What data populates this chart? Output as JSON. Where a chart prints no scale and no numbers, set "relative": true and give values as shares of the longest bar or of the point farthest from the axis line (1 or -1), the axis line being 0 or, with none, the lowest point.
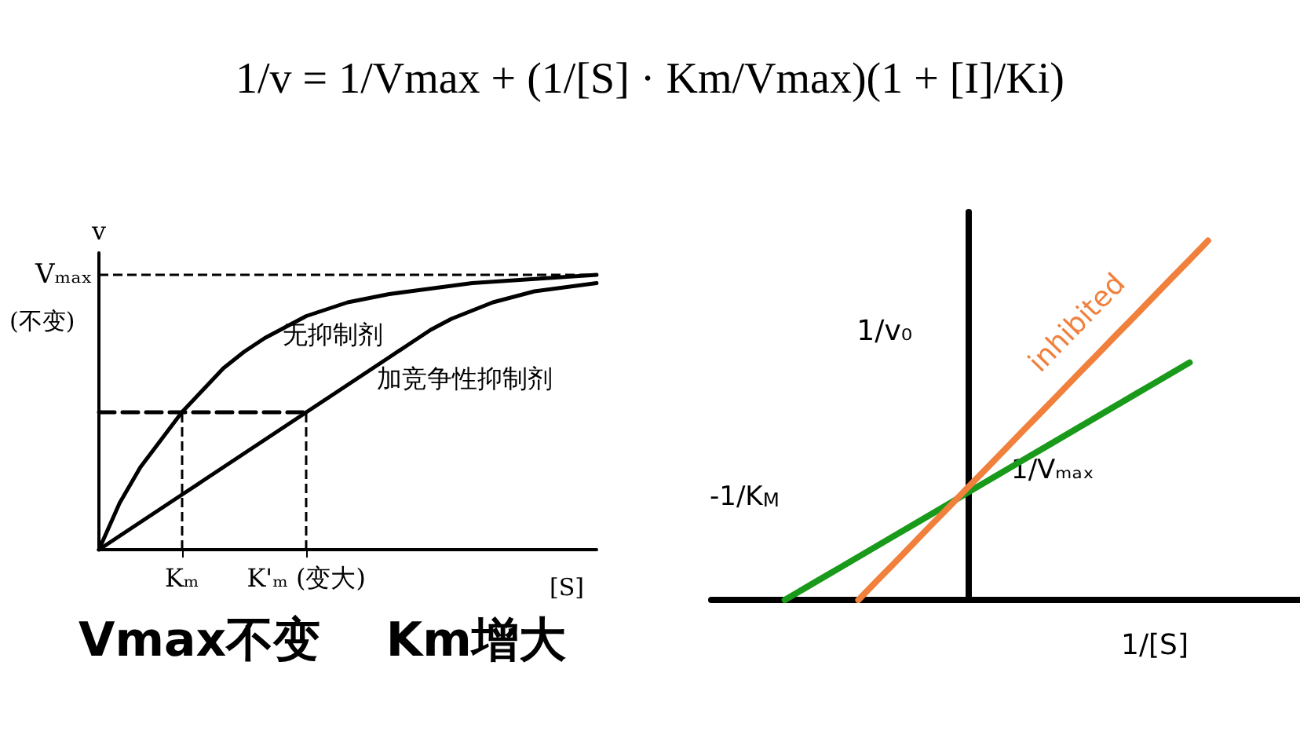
{
  "chart_data": [
    {
      "type": "line",
      "title": "1/v = 1/Vmax + (1/[S] · Km/Vmax)(1 + [I]/Ki)",
      "xlabel": "[S]",
      "ylabel": "v",
      "relative": true,
      "marker": "none",
      "line_style": "solid",
      "grid": false,
      "legend": false,
      "categories": [
        null,
        null,
        null,
        null,
        "Kₘ",
        null,
        null,
        null,
        null,
        null,
        "K'ₘ (变大)",
        null,
        null,
        null,
        null,
        null,
        null,
        null,
        null,
        null,
        null,
        null,
        null,
        null,
        null
      ],
      "series": [
        {
          "color": "#000000",
          "values": [
            0,
            0.17,
            0.3,
            0.4,
            0.5,
            0.58,
            0.66,
            0.72,
            0.77,
            0.81,
            0.85,
            0.875,
            0.9,
            0.915,
            0.93,
            0.94,
            0.95,
            0.96,
            0.97,
            0.975,
            0.98,
            0.985,
            0.99,
            0.995,
            1
          ]
        },
        {
          "color": "#000000",
          "values": [
            0,
            0.05,
            0.1,
            0.15,
            0.2,
            0.25,
            0.3,
            0.35,
            0.4,
            0.45,
            0.5,
            0.55,
            0.6,
            0.65,
            0.7,
            0.75,
            0.8,
            0.84,
            0.87,
            0.9,
            0.92,
            0.94,
            0.95,
            0.96,
            0.97
          ]
        },
        {
          "color": "#000000",
          "line_style": "dashed",
          "values": [
            0.5,
            0.5,
            0.5,
            0.5,
            0.5,
            0.5,
            0.5,
            0.5,
            0.5,
            0.5,
            0.5,
            null,
            null,
            null,
            null,
            null,
            null,
            null,
            null,
            null,
            null,
            null,
            null,
            null,
            null
          ]
        }
      ],
      "ref_lines": [
        {
          "axis": "y",
          "value": 1,
          "label": "Vₘₐₓ",
          "line_style": "dashed"
        },
        {
          "axis": "x",
          "value": "Kₘ",
          "line_style": "dashed"
        },
        {
          "axis": "x",
          "value": "K'ₘ (变大)",
          "line_style": "dashed"
        }
      ],
      "annotations": [
        "(不变)",
        "无抑制剂",
        "加竞争性抑制剂",
        "Vmax不变    Km增大"
      ]
    },
    {
      "type": "line",
      "xlabel": "1/[S]",
      "ylabel": "1/v₀",
      "relative": true,
      "marker": "none",
      "line_style": "solid",
      "grid": false,
      "legend": false,
      "categories": [
        null,
        null,
        null,
        null,
        null,
        null,
        null,
        null,
        null,
        null,
        null,
        null,
        null,
        null,
        null,
        null,
        null,
        null,
        null,
        null,
        null,
        null,
        null,
        null,
        null,
        null,
        null,
        null,
        null,
        null,
        null,
        null,
        null
      ],
      "series": [
        {
          "color": "#1a9a1a",
          "values": [
            null,
            null,
            null,
            null,
            0,
            0.03,
            0.06,
            0.09,
            0.12,
            0.15,
            0.18,
            0.21,
            0.24,
            0.27,
            0.301,
            0.331,
            0.361,
            0.391,
            0.421,
            0.451,
            0.481,
            0.511,
            0.541,
            0.571,
            0.601,
            0.631,
            0.661,
            null,
            null,
            null,
            null,
            null,
            null
          ]
        },
        {
          "name": "inhibited",
          "color": "#f0803c",
          "values": [
            null,
            null,
            null,
            null,
            null,
            null,
            null,
            null,
            0,
            0.053,
            0.105,
            0.158,
            0.211,
            0.263,
            0.316,
            0.368,
            0.421,
            0.474,
            0.526,
            0.579,
            0.632,
            0.684,
            0.737,
            0.789,
            0.842,
            0.895,
            0.947,
            1,
            null,
            null,
            null,
            null,
            null
          ]
        }
      ],
      "annotations": [
        "-1/K$_{M}$",
        "1/Vₘₐₓ"
      ]
    }
  ]
}
